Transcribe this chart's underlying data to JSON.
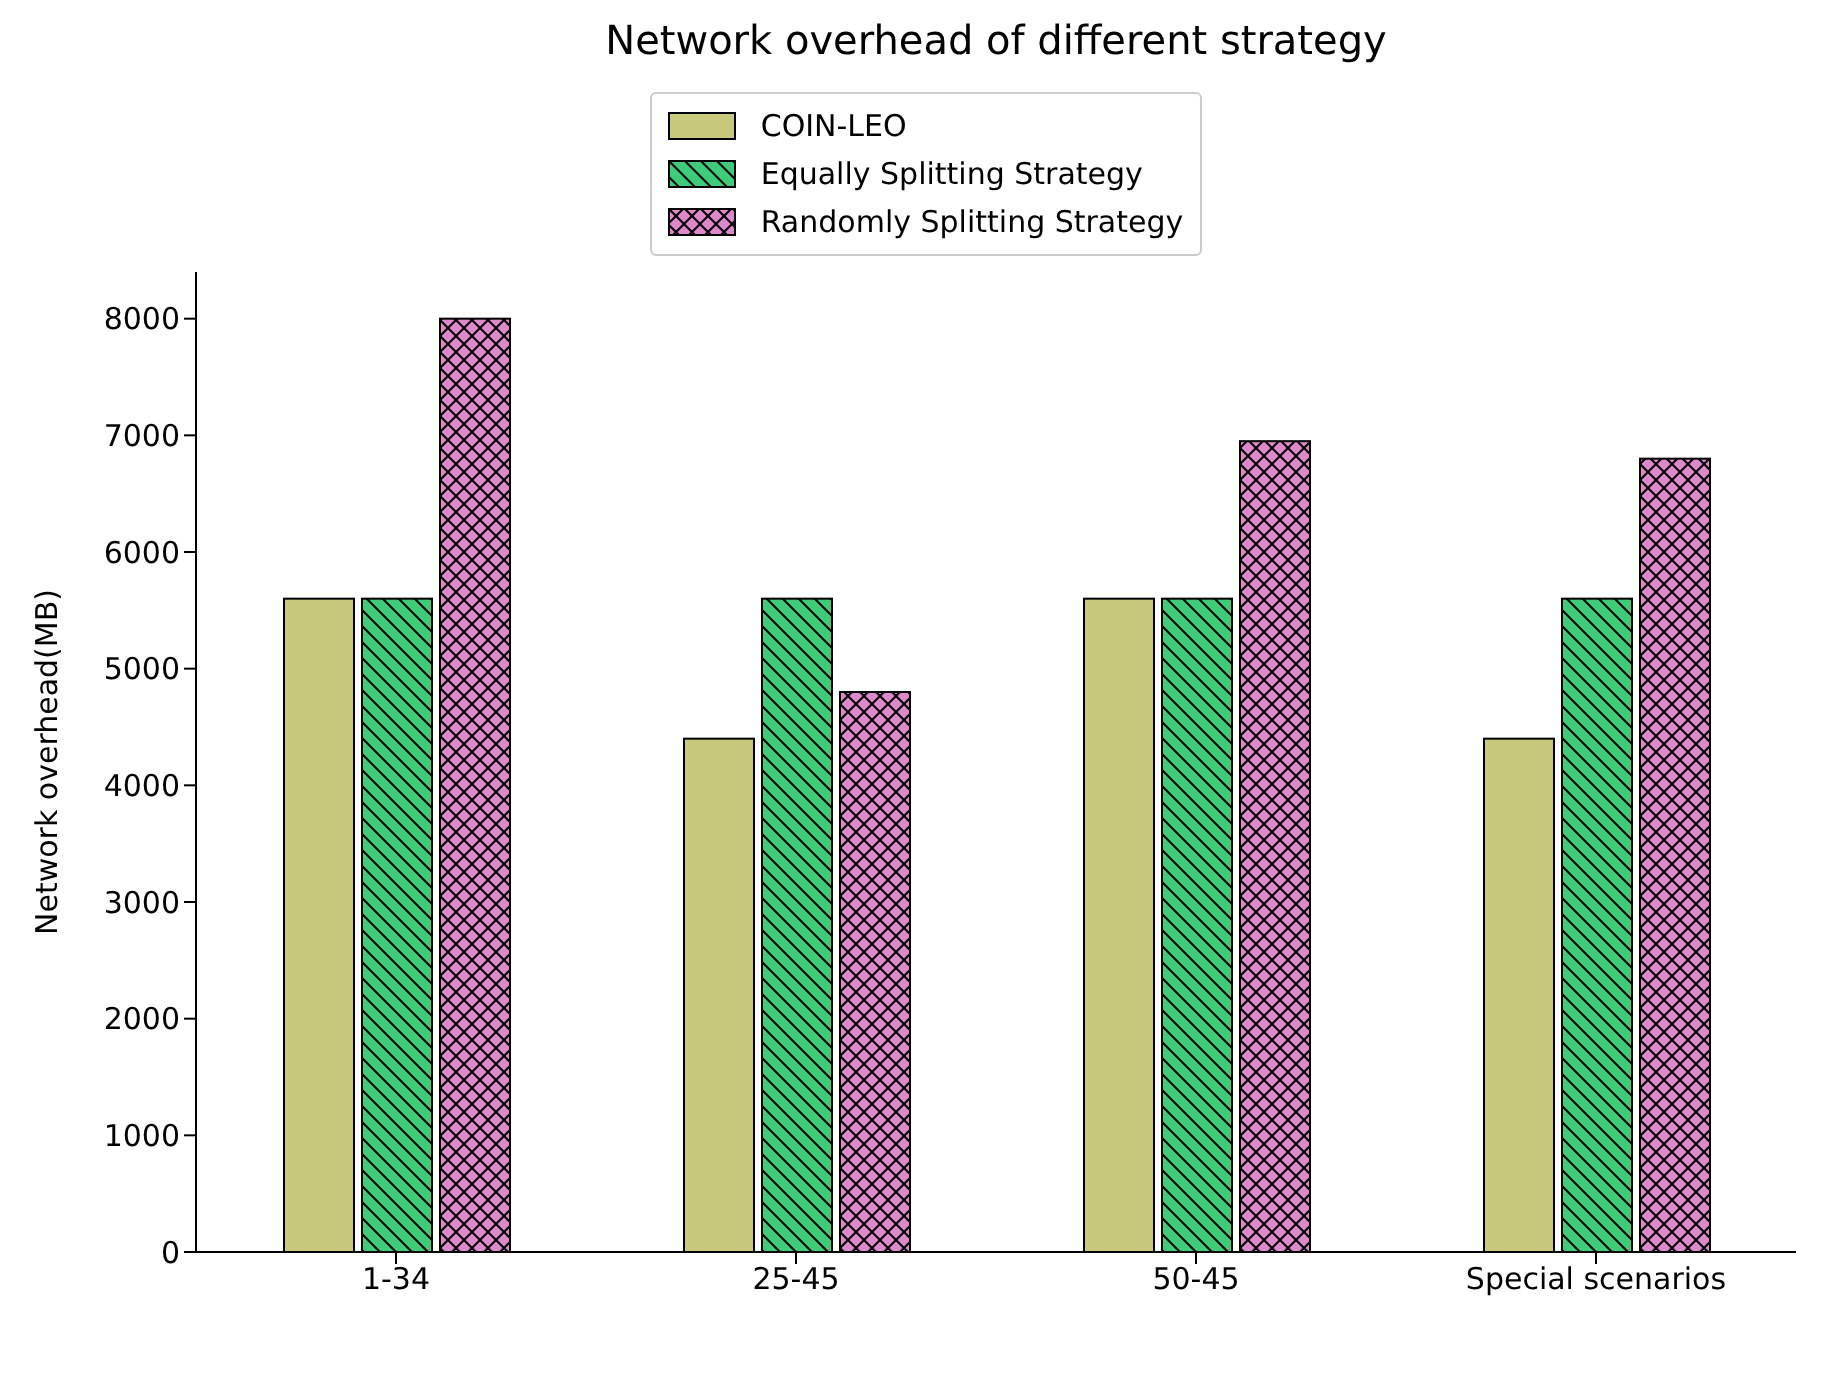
{
  "chart_data": {
    "type": "bar",
    "title": "Network overhead of different strategy",
    "ylabel": "Network overhead(MB)",
    "categories": [
      "1-34",
      "25-45",
      "50-45",
      "Special scenarios"
    ],
    "series": [
      {
        "name": "COIN-LEO",
        "color": "#c8c87a",
        "values": [
          5600,
          4400,
          5600,
          4400
        ]
      },
      {
        "name": "Equally Splitting Strategy",
        "color": "#3dcc77",
        "values": [
          5600,
          5600,
          5600,
          5600
        ]
      },
      {
        "name": "Randomly Splitting Strategy",
        "color": "#dd88cc",
        "values": [
          8000,
          4800,
          6950,
          6800
        ]
      }
    ],
    "ylim": [
      0,
      8400
    ],
    "yticks": [
      0,
      1000,
      2000,
      3000,
      4000,
      5000,
      6000,
      7000,
      8000
    ],
    "grid": false,
    "legend": "top"
  }
}
